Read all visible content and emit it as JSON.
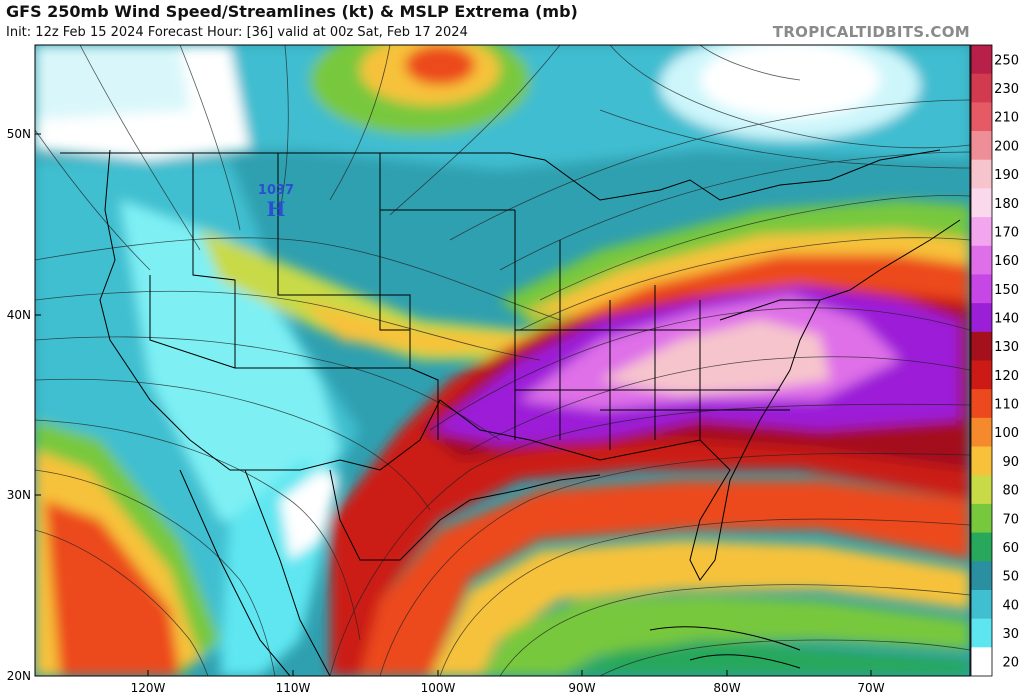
{
  "header": {
    "title": "GFS 250mb Wind Speed/Streamlines (kt) & MSLP Extrema (mb)",
    "subtitle": "Init: 12z Feb 15 2024   Forecast Hour: [36]   valid at 00z Sat, Feb 17 2024",
    "brand": "TROPICALTIDBITS.COM"
  },
  "map": {
    "lon_range": [
      -128,
      -63
    ],
    "lat_range": [
      20,
      55
    ],
    "lat_labels": [
      "50N",
      "40N",
      "30N",
      "20N"
    ],
    "lat_values": [
      50,
      40,
      30,
      20
    ],
    "lon_labels": [
      "120W",
      "110W",
      "100W",
      "90W",
      "80W",
      "70W"
    ],
    "lon_values": [
      -120,
      -110,
      -100,
      -90,
      -80,
      -70
    ],
    "pressure_marker": {
      "value": "1037",
      "symbol": "H",
      "lat": 46.2,
      "lon": -111.2,
      "color": "#2a4fd0"
    }
  },
  "colorbar": {
    "labels": [
      "250",
      "230",
      "210",
      "200",
      "190",
      "180",
      "170",
      "160",
      "150",
      "140",
      "130",
      "120",
      "110",
      "100",
      "90",
      "80",
      "70",
      "60",
      "50",
      "40",
      "30",
      "20"
    ],
    "colors": [
      "#b8204a",
      "#d23a4f",
      "#e55a64",
      "#ee8f98",
      "#f6c4cc",
      "#fbd9ec",
      "#f2a6ee",
      "#df6fe8",
      "#c646e6",
      "#9c1fd8",
      "#a4101c",
      "#cc1a16",
      "#ec4a1e",
      "#f58a2c",
      "#f7c23a",
      "#c8da46",
      "#78c83e",
      "#27a85c",
      "#2a8fa0",
      "#3fbfd0",
      "#5ee6f0",
      "#ffffff"
    ]
  }
}
